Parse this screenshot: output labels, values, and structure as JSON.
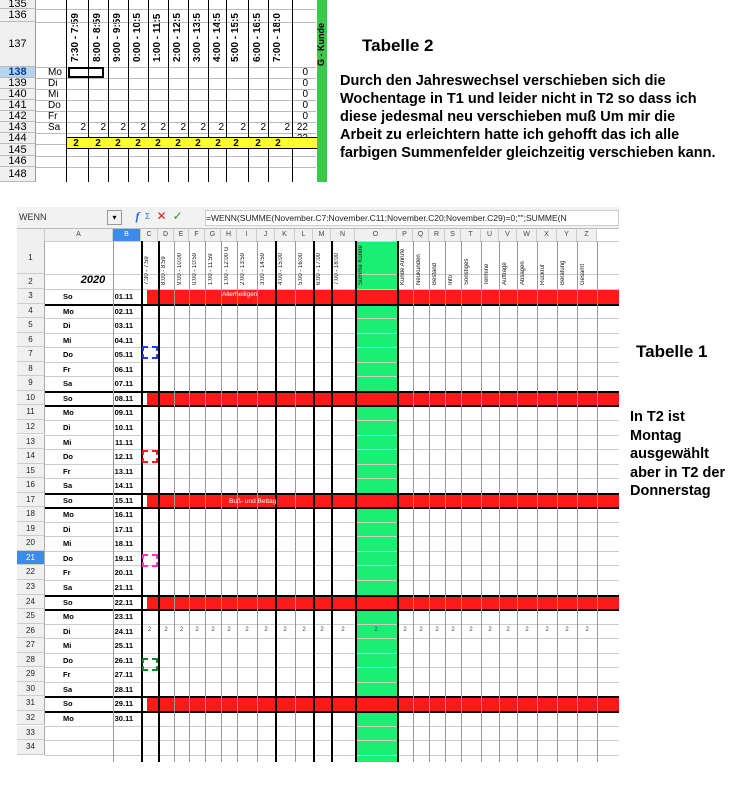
{
  "tabelle2": {
    "rows": [
      {
        "n": "135",
        "day": "",
        "zero": ""
      },
      {
        "n": "136",
        "day": "",
        "zero": ""
      },
      {
        "n": "137",
        "day": "",
        "zero": ""
      },
      {
        "n": "138",
        "day": "Mo",
        "zero": "0"
      },
      {
        "n": "139",
        "day": "Di",
        "zero": "0"
      },
      {
        "n": "140",
        "day": "Mi",
        "zero": "0"
      },
      {
        "n": "141",
        "day": "Do",
        "zero": "0"
      },
      {
        "n": "142",
        "day": "Fr",
        "zero": "0"
      },
      {
        "n": "143",
        "day": "Sa",
        "zero": "22"
      },
      {
        "n": "144",
        "day": "",
        "zero": "22"
      },
      {
        "n": "145",
        "day": "",
        "zero": ""
      },
      {
        "n": "146",
        "day": "",
        "zero": ""
      },
      {
        "n": "148",
        "day": "",
        "zero": ""
      }
    ],
    "selected_row": "138",
    "times": [
      "7:30 - 7:59",
      "8:00 - 8:59",
      "9:00 - 9:59",
      "0:00 - 10:5",
      "1:00 - 11:5",
      "2:00 - 12:5",
      "3:00 - 13:5",
      "4:00 - 14:5",
      "5:00 - 15:5",
      "6:00 - 16:5",
      "7:00 - 18:0"
    ],
    "row143_values": [
      "2",
      "2",
      "2",
      "2",
      "2",
      "2",
      "2",
      "2",
      "2",
      "2",
      "2"
    ],
    "row144_values": [
      "2",
      "2",
      "2",
      "2",
      "2",
      "2",
      "2",
      "2",
      "2",
      "2",
      "2"
    ],
    "green_header": "G - Kunde",
    "colors": {
      "yellow": "#ffff33",
      "green": "#3cc84a"
    }
  },
  "title2": "Tabelle 2",
  "description": "Durch den Jahreswechsel verschieben sich die Wochentage in T1 und leider nicht in T2 so dass ich diese jedesmal neu verschieben muß Um mir die Arbeit zu erleichtern hatte ich gehofft das ich alle farbigen Summenfelder gleichzeitig verschieben kann.",
  "title1": "Tabelle 1",
  "note1": "In T2 ist Montag ausgewählt aber in T2 der Donnerstag",
  "tabelle1": {
    "name_box": "WENN",
    "formula": "=WENN(SUMME(November.C7:November.C11;November.C20;November.C29)=0;\"\";SUMME(N",
    "col_headers": [
      "A",
      "B",
      "C",
      "D",
      "E",
      "F",
      "G",
      "H",
      "I",
      "J",
      "K",
      "L",
      "M",
      "N",
      "O",
      "P",
      "Q",
      "R",
      "S",
      "T",
      "U",
      "V",
      "W",
      "X",
      "Y",
      "Z"
    ],
    "selected_col": "B",
    "year": "2020",
    "header_texts": [
      "7:30 - 7:59",
      "8:00 - 8:59",
      "9:00 - 10:00",
      "0:00 - 10:59",
      "1:00 - 11:59",
      "1:00 - 12:00 G",
      "2:00 - 13:59",
      "3:00 - 14:59",
      "4:00 - 15:00",
      "5:00 - 16:00",
      "6:00 - 17:00",
      "7:00 - 18:00",
      "Summe Kunde",
      "Kunde Anrufe",
      "Neukunden",
      "Bestand",
      "Info",
      "Sonstiges",
      "Termine",
      "Aufträge",
      "Absagen",
      "Rückruf",
      "Beratung",
      "Gesamt"
    ],
    "rows": [
      {
        "n": "3",
        "day": "So",
        "date": "01.11"
      },
      {
        "n": "4",
        "day": "Mo",
        "date": "02.11"
      },
      {
        "n": "5",
        "day": "Di",
        "date": "03.11"
      },
      {
        "n": "6",
        "day": "Mi",
        "date": "04.11"
      },
      {
        "n": "7",
        "day": "Do",
        "date": "05.11"
      },
      {
        "n": "8",
        "day": "Fr",
        "date": "06.11"
      },
      {
        "n": "9",
        "day": "Sa",
        "date": "07.11"
      },
      {
        "n": "10",
        "day": "So",
        "date": "08.11"
      },
      {
        "n": "11",
        "day": "Mo",
        "date": "09.11"
      },
      {
        "n": "12",
        "day": "Di",
        "date": "10.11"
      },
      {
        "n": "13",
        "day": "Mi",
        "date": "11.11"
      },
      {
        "n": "14",
        "day": "Do",
        "date": "12.11"
      },
      {
        "n": "15",
        "day": "Fr",
        "date": "13.11"
      },
      {
        "n": "16",
        "day": "Sa",
        "date": "14.11"
      },
      {
        "n": "17",
        "day": "So",
        "date": "15.11"
      },
      {
        "n": "18",
        "day": "Mo",
        "date": "16.11"
      },
      {
        "n": "19",
        "day": "Di",
        "date": "17.11"
      },
      {
        "n": "20",
        "day": "Mi",
        "date": "18.11"
      },
      {
        "n": "21",
        "day": "Do",
        "date": "19.11"
      },
      {
        "n": "22",
        "day": "Fr",
        "date": "20.11"
      },
      {
        "n": "23",
        "day": "Sa",
        "date": "21.11"
      },
      {
        "n": "24",
        "day": "So",
        "date": "22.11"
      },
      {
        "n": "25",
        "day": "Mo",
        "date": "23.11"
      },
      {
        "n": "26",
        "day": "Di",
        "date": "24.11"
      },
      {
        "n": "27",
        "day": "Mi",
        "date": "25.11"
      },
      {
        "n": "28",
        "day": "Do",
        "date": "26.11"
      },
      {
        "n": "29",
        "day": "Fr",
        "date": "27.11"
      },
      {
        "n": "30",
        "day": "Sa",
        "date": "28.11"
      },
      {
        "n": "31",
        "day": "So",
        "date": "29.11"
      },
      {
        "n": "32",
        "day": "Mo",
        "date": "30.11"
      },
      {
        "n": "33",
        "day": "",
        "date": ""
      },
      {
        "n": "34",
        "day": "",
        "date": ""
      }
    ],
    "band_texts": {
      "row3": "Allerheiligen",
      "row17": "Buß- und Bettag"
    },
    "row26_values": [
      "2",
      "2",
      "2",
      "2",
      "2",
      "2",
      "2",
      "2",
      "2",
      "2",
      "2",
      "2",
      "2",
      "2",
      "2",
      "2",
      "2",
      "2",
      "2",
      "2",
      "2",
      "2",
      "2",
      "2"
    ],
    "colors": {
      "red": "#ff1a1a",
      "green": "#1aef74",
      "blue": "#1a3cff",
      "magenta": "#ff33cc",
      "darkgreen": "#0a8a2a"
    }
  }
}
